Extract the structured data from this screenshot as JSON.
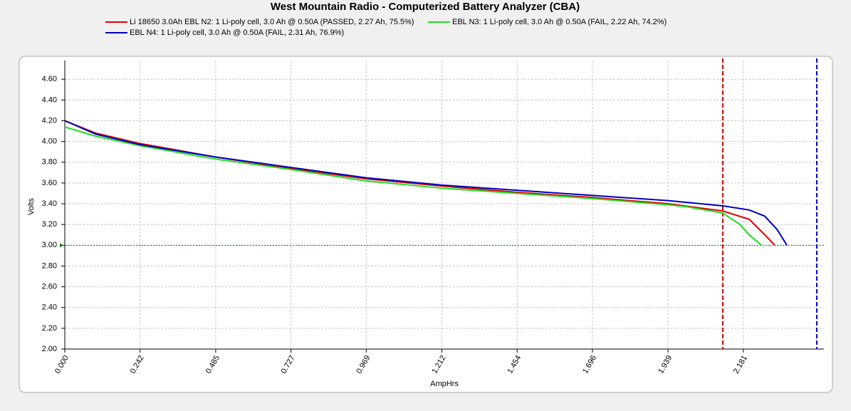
{
  "chart_data": {
    "type": "line",
    "title": "West Mountain Radio - Computerized Battery Analyzer (CBA)",
    "x_label": "AmpHrs",
    "y_label": "Volts",
    "xlim": [
      0,
      2.44
    ],
    "ylim": [
      2,
      4.78
    ],
    "xticks": [
      {
        "value": 0,
        "label": "0.000"
      },
      0.242,
      0.485,
      0.727,
      0.969,
      1.212,
      1.454,
      1.696,
      1.939,
      2.181
    ],
    "yticks": [
      {
        "value": 2,
        "label": "2.00"
      },
      {
        "value": 2.2,
        "label": "2.20"
      },
      {
        "value": 2.4,
        "label": "2.40"
      },
      {
        "value": 2.6,
        "label": "2.60"
      },
      {
        "value": 2.8,
        "label": "2.80"
      },
      {
        "value": 3,
        "label": "3.00"
      },
      {
        "value": 3.2,
        "label": "3.20"
      },
      {
        "value": 3.4,
        "label": "3.40"
      },
      {
        "value": 3.6,
        "label": "3.60"
      },
      {
        "value": 3.8,
        "label": "3.80"
      },
      {
        "value": 4,
        "label": "4.00"
      },
      {
        "value": 4.2,
        "label": "4.20"
      },
      {
        "value": 4.4,
        "label": "4.40"
      },
      {
        "value": 4.6,
        "label": "4.60"
      }
    ],
    "grid": true,
    "series": [
      {
        "name": "Li 18650 3.0Ah EBL N2: 1 Li-poly cell, 3.0 Ah @ 0.50A (PASSED, 2.27 Ah, 75.5%)",
        "color": "#e00000",
        "x": [
          0,
          0.1,
          0.242,
          0.485,
          0.727,
          0.969,
          1.212,
          1.454,
          1.696,
          1.939,
          2.115,
          2.2,
          2.25,
          2.282
        ],
        "values": [
          4.2,
          4.08,
          3.98,
          3.85,
          3.74,
          3.64,
          3.57,
          3.51,
          3.46,
          3.4,
          3.33,
          3.25,
          3.1,
          3.0
        ]
      },
      {
        "name": "EBL N3: 1 Li-poly cell, 3.0 Ah @ 0.50A (FAIL, 2.22 Ah, 74.2%)",
        "color": "#22dd22",
        "x": [
          0,
          0.1,
          0.242,
          0.485,
          0.727,
          0.969,
          1.212,
          1.454,
          1.696,
          1.939,
          2.0,
          2.115,
          2.17,
          2.2,
          2.239
        ],
        "values": [
          4.14,
          4.05,
          3.96,
          3.83,
          3.73,
          3.62,
          3.55,
          3.5,
          3.45,
          3.39,
          3.37,
          3.31,
          3.2,
          3.1,
          3.0
        ]
      },
      {
        "name": "EBL N4: 1 Li-poly cell, 3.0 Ah @ 0.50A (FAIL, 2.31 Ah, 76.9%)",
        "color": "#0000c0",
        "x": [
          0,
          0.1,
          0.242,
          0.485,
          0.727,
          0.969,
          1.212,
          1.454,
          1.696,
          1.939,
          2.115,
          2.2,
          2.25,
          2.29,
          2.321
        ],
        "values": [
          4.2,
          4.07,
          3.97,
          3.85,
          3.75,
          3.65,
          3.58,
          3.53,
          3.48,
          3.43,
          3.38,
          3.34,
          3.28,
          3.15,
          3.0
        ]
      }
    ],
    "vlines": [
      {
        "x": 2.115,
        "color": "#d00000"
      },
      {
        "x": 2.417,
        "color": "#0000c0"
      }
    ],
    "hline": {
      "y": 3.0,
      "color": "#008000"
    }
  }
}
